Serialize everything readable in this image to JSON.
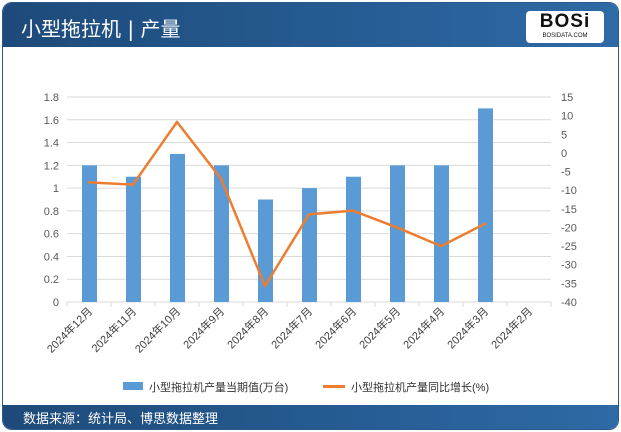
{
  "header": {
    "title": "小型拖拉机 | 产量",
    "logo_text": "BOSi",
    "logo_sub": "BOSIDATA.COM"
  },
  "footer": {
    "source": "数据来源：统计局、博思数据整理"
  },
  "chart_data": {
    "type": "bar+line",
    "categories": [
      "2024年12月",
      "2024年11月",
      "2024年10月",
      "2024年9月",
      "2024年8月",
      "2024年7月",
      "2024年6月",
      "2024年5月",
      "2024年4月",
      "2024年3月",
      "2024年2月"
    ],
    "series": [
      {
        "name": "小型拖拉机产量当期值(万台)",
        "type": "bar",
        "axis": "left",
        "color": "#5b9bd5",
        "values": [
          1.2,
          1.1,
          1.3,
          1.2,
          0.9,
          1.0,
          1.1,
          1.2,
          1.2,
          1.7,
          null
        ]
      },
      {
        "name": "小型拖拉机产量同比增长(%)",
        "type": "line",
        "axis": "right",
        "color": "#ed7d31",
        "values": [
          -7.9,
          -8.5,
          8.3,
          -6.9,
          -35.7,
          -16.5,
          -15.5,
          -20,
          -25,
          -19,
          null
        ]
      }
    ],
    "ylim_left": [
      0,
      1.8
    ],
    "yticks_left": [
      "0",
      "0.2",
      "0.4",
      "0.6",
      "0.8",
      "1",
      "1.2",
      "1.4",
      "1.6",
      "1.8"
    ],
    "ylim_right": [
      -40,
      15
    ],
    "yticks_right": [
      "-40",
      "-35",
      "-30",
      "-25",
      "-20",
      "-15",
      "-10",
      "-5",
      "0",
      "5",
      "10",
      "15"
    ],
    "grid": true,
    "legend": "bottom"
  }
}
